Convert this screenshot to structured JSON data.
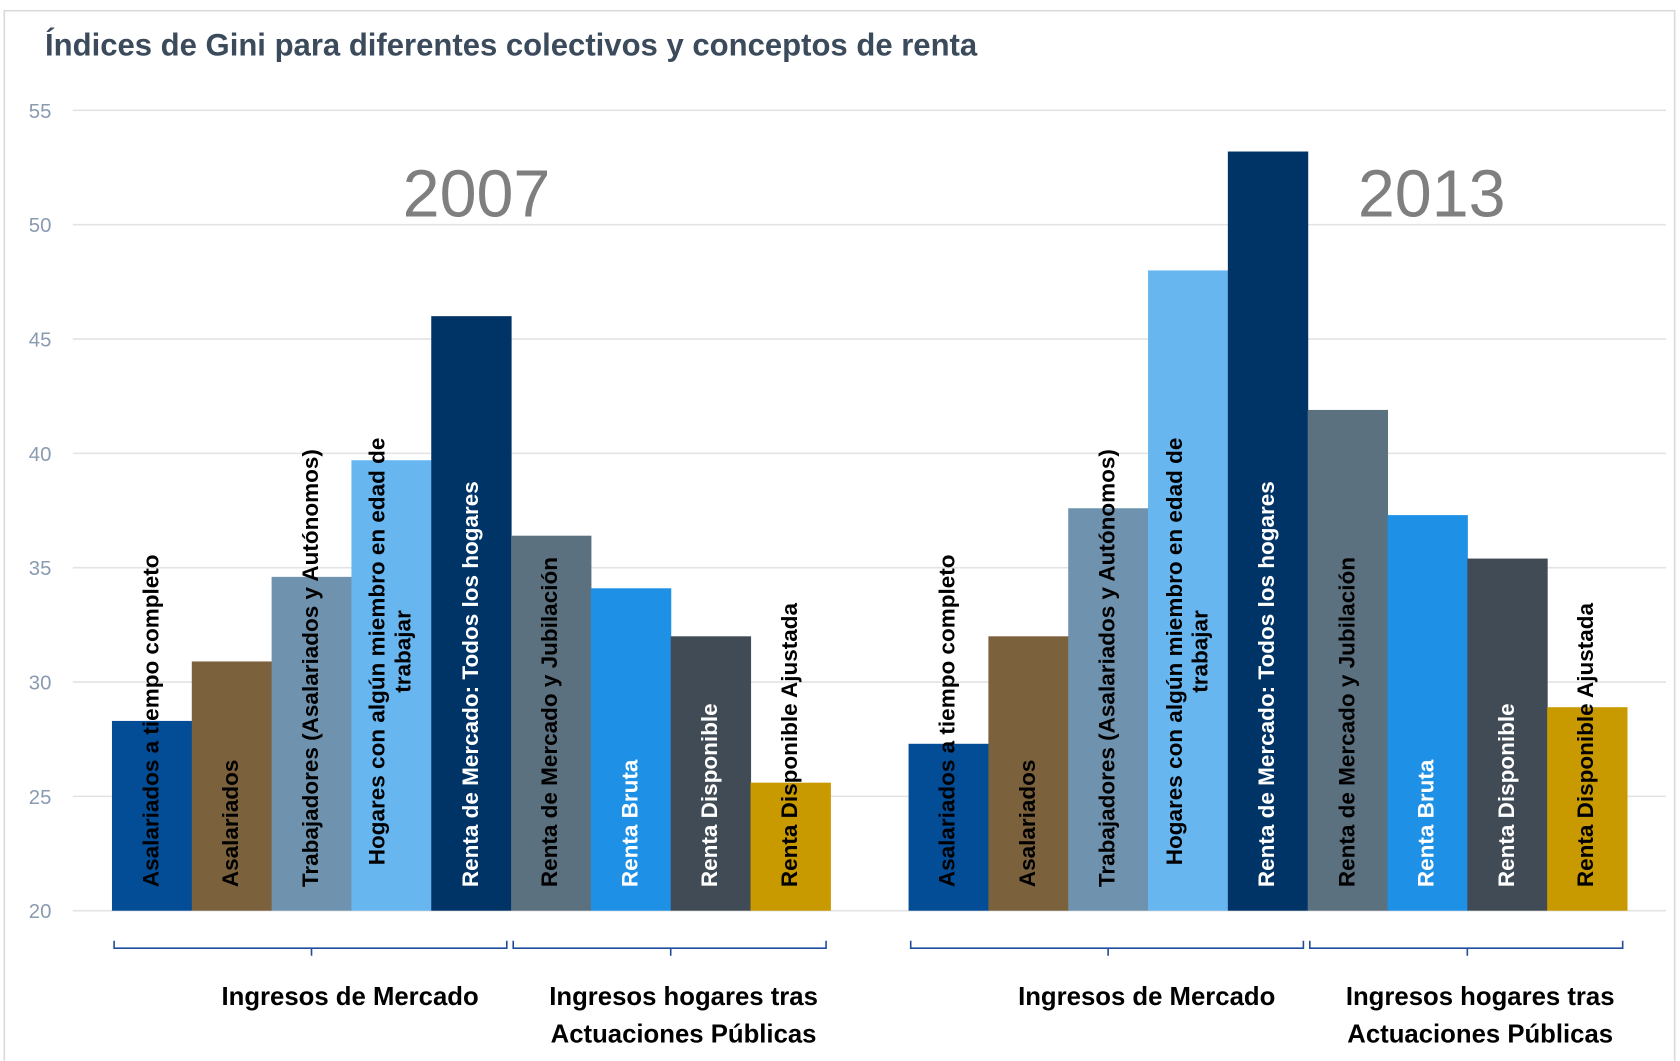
{
  "chart_data": {
    "type": "bar",
    "title": "Índices de Gini para diferentes colectivos y conceptos de renta",
    "categories": [
      "2007",
      "2013"
    ],
    "bracket_labels": [
      "Ingresos de Mercado",
      "Ingresos hogares tras Actuaciones Públicas"
    ],
    "series": [
      {
        "name": "Asalariados a tiempo completo",
        "color": "#034c96",
        "values": [
          28.3,
          27.3
        ]
      },
      {
        "name": "Asalariados",
        "color": "#7b613c",
        "values": [
          30.9,
          32.0
        ]
      },
      {
        "name": "Trabajadores (Asalariados y Autónomos)",
        "color": "#6f93af",
        "values": [
          34.6,
          37.6
        ]
      },
      {
        "name": "Hogares con algún miembro en edad de trabajar",
        "color": "#67b6f0",
        "values": [
          39.7,
          48.0
        ]
      },
      {
        "name": "Renta de Mercado: Todos los hogares",
        "color": "#003466",
        "values": [
          46.0,
          53.2
        ]
      },
      {
        "name": "Renta de Mercado y Jubilación",
        "color": "#5b7180",
        "values": [
          36.4,
          41.9
        ]
      },
      {
        "name": "Renta Bruta",
        "color": "#1e90e6",
        "values": [
          34.1,
          37.3
        ]
      },
      {
        "name": "Renta Disponible",
        "color": "#414b55",
        "values": [
          32.0,
          35.4
        ]
      },
      {
        "name": "Renta Disponible Ajustada",
        "color": "#c99a00",
        "values": [
          25.6,
          28.9
        ]
      }
    ],
    "ylim": [
      20,
      55
    ],
    "yticks": [
      20,
      25,
      30,
      35,
      40,
      45,
      50,
      55
    ],
    "grid": true
  }
}
